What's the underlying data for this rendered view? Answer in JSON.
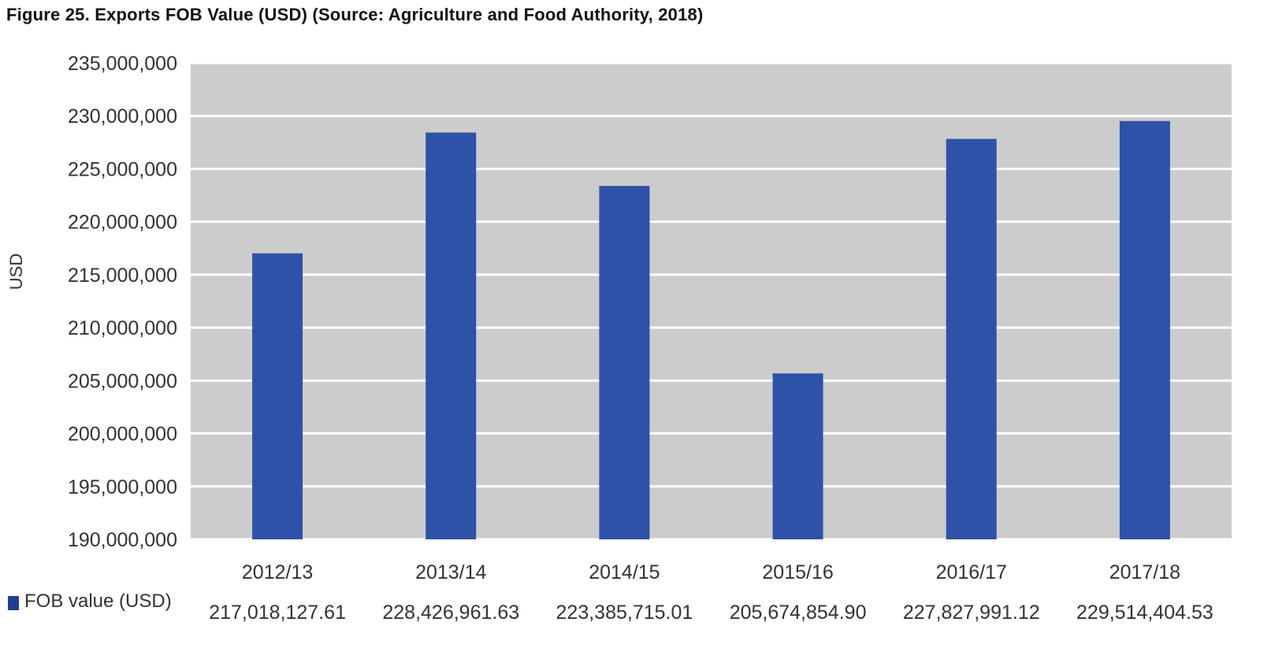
{
  "title": "Figure 25. Exports FOB Value (USD) (Source: Agriculture and Food Authority, 2018)",
  "colors": {
    "bar": "#2e52a8",
    "plot_bg": "#cccccc",
    "grid": "#ffffff",
    "legend_swatch": "#1f3f91"
  },
  "chart_data": {
    "type": "bar",
    "title": "",
    "xlabel": "",
    "ylabel": "USD",
    "ylim": [
      190000000,
      235000000
    ],
    "yticks": [
      190000000,
      195000000,
      200000000,
      205000000,
      210000000,
      215000000,
      220000000,
      225000000,
      230000000,
      235000000
    ],
    "ytick_labels": [
      "190,000,000",
      "195,000,000",
      "200,000,000",
      "205,000,000",
      "210,000,000",
      "215,000,000",
      "220,000,000",
      "225,000,000",
      "230,000,000",
      "235,000,000"
    ],
    "grid": true,
    "legend_position": "bottom-left",
    "categories": [
      "2012/13",
      "2013/14",
      "2014/15",
      "2015/16",
      "2016/17",
      "2017/18"
    ],
    "series": [
      {
        "name": "FOB value (USD)",
        "values": [
          217018127.61,
          228426961.63,
          223385715.01,
          205674854.9,
          227827991.12,
          229514404.53
        ],
        "value_labels": [
          "217,018,127.61",
          "228,426,961.63",
          "223,385,715.01",
          "205,674,854.90",
          "227,827,991.12",
          "229,514,404.53"
        ]
      }
    ]
  }
}
